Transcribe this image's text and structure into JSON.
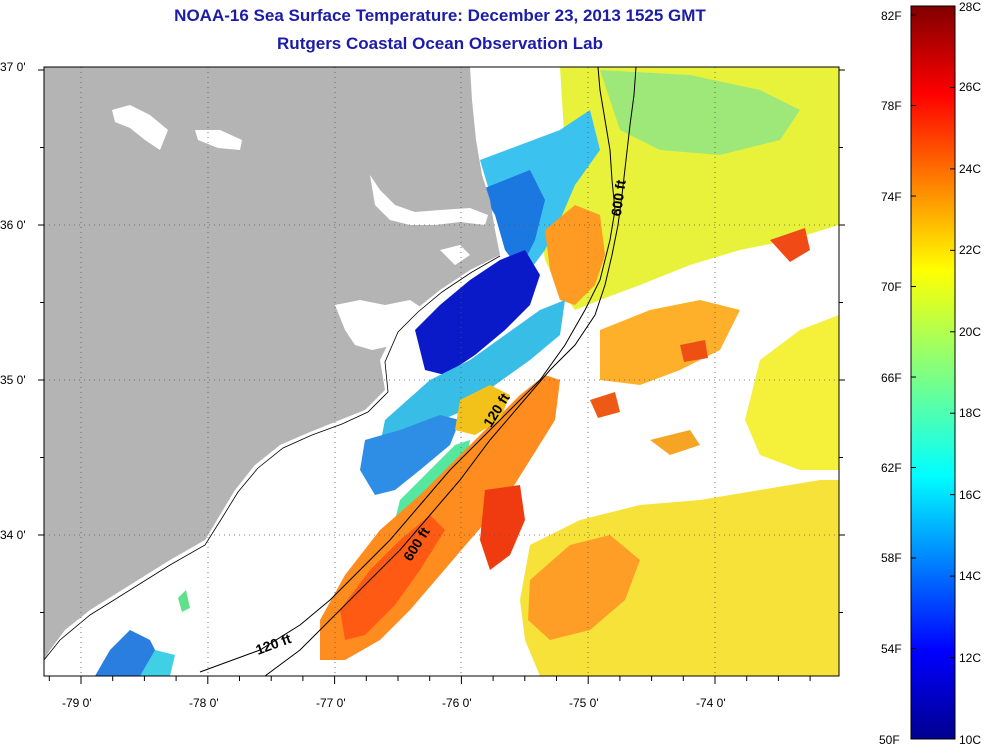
{
  "header": {
    "title": "NOAA-16 Sea Surface Temperature:  December 23, 2013 1525 GMT",
    "subtitle": "Rutgers Coastal Ocean Observation Lab"
  },
  "map": {
    "lat_ticks": [
      {
        "value": 37,
        "label": "37 0'"
      },
      {
        "value": 36,
        "label": "36 0'"
      },
      {
        "value": 35,
        "label": "35 0'"
      },
      {
        "value": 34,
        "label": "34 0'"
      }
    ],
    "lon_ticks": [
      {
        "value": -79,
        "label": "-79 0'"
      },
      {
        "value": -78,
        "label": "-78 0'"
      },
      {
        "value": -77,
        "label": "-77 0'"
      },
      {
        "value": -76,
        "label": "-76 0'"
      },
      {
        "value": -75,
        "label": "-75 0'"
      },
      {
        "value": -74,
        "label": "-74 0'"
      }
    ],
    "isobath_labels": {
      "ft120_south": "120 ft",
      "ft120_mid": "120 ft",
      "ft600_south": "600 ft",
      "ft600_north": "600 ft"
    },
    "colors": {
      "land": "#b4b4b4",
      "no_data": "#ffffff",
      "isobath": "#000000"
    }
  },
  "colorbar": {
    "fahrenheit_labels": [
      "82F",
      "78F",
      "74F",
      "70F",
      "66F",
      "62F",
      "58F",
      "54F",
      "50F"
    ],
    "celsius_labels": [
      "28C",
      "26C",
      "24C",
      "22C",
      "20C",
      "18C",
      "16C",
      "14C",
      "12C",
      "10C"
    ],
    "range_c": [
      10,
      28
    ],
    "colormap": "jet"
  }
}
